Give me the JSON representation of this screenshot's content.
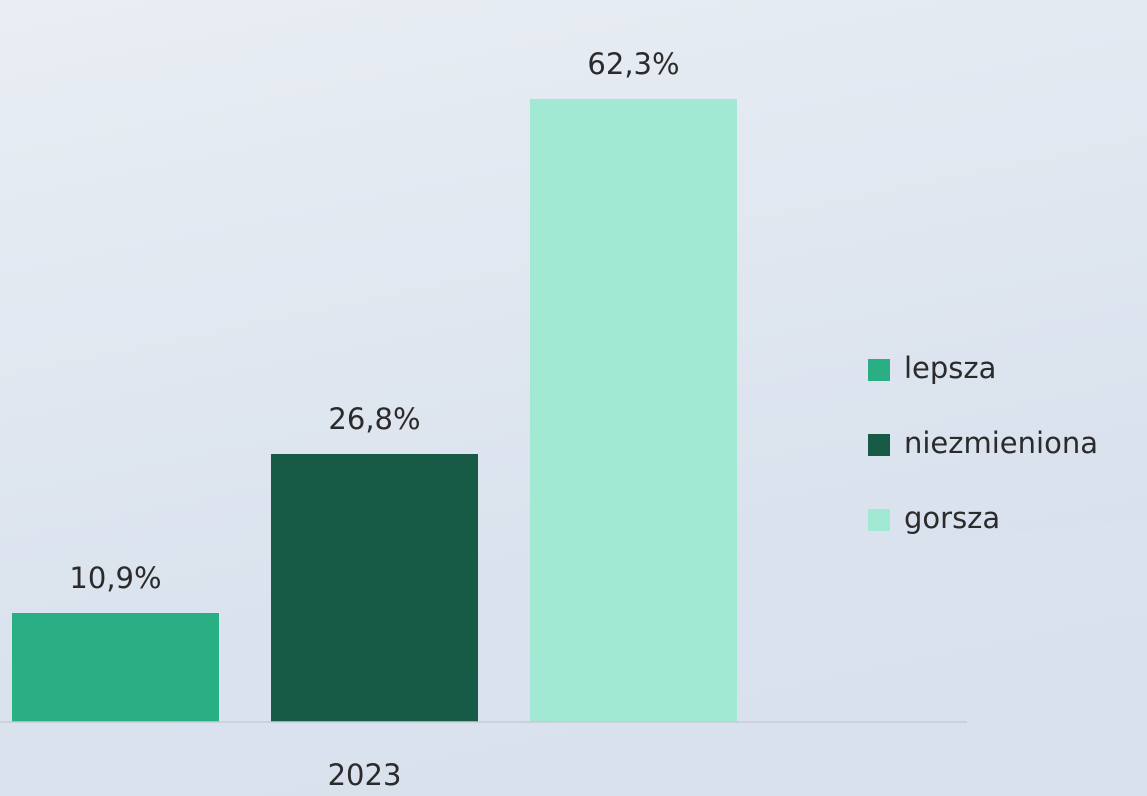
{
  "chart_data": {
    "type": "bar",
    "categories": [
      "2023"
    ],
    "series": [
      {
        "name": "lepsza",
        "color": "#2aae84",
        "values": [
          10.9
        ],
        "value_labels": [
          "10,9%"
        ]
      },
      {
        "name": "niezmieniona",
        "color": "#175a45",
        "values": [
          26.8
        ],
        "value_labels": [
          "26,8%"
        ]
      },
      {
        "name": "gorsza",
        "color": "#a2e9d4",
        "values": [
          62.3
        ],
        "value_labels": [
          "62,3%"
        ]
      }
    ],
    "ylim": [
      0,
      70
    ],
    "legend": "right"
  }
}
